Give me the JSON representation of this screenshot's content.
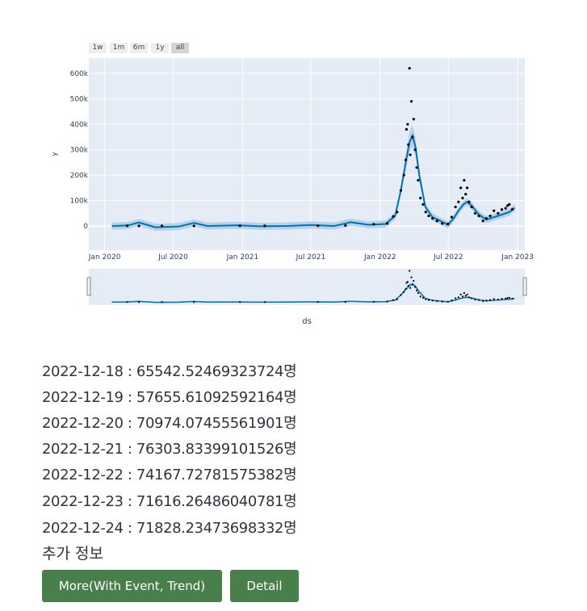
{
  "range_selector": {
    "buttons": [
      "1w",
      "1m",
      "6m",
      "1y",
      "all"
    ],
    "active": "all"
  },
  "colors": {
    "plot_bg": "#e5ecf6",
    "grid": "#ffffff",
    "forecast_line": "#0072b2",
    "uncertainty_band": "#a6c8e6",
    "observed_points": "#000000",
    "button_bg": "#487f4a"
  },
  "chart_data": {
    "type": "line",
    "xlabel": "ds",
    "ylabel": "y",
    "x_range": [
      "2019-11-20",
      "2023-01-20"
    ],
    "ylim": [
      -95000,
      660000
    ],
    "y_ticks": [
      0,
      100000,
      200000,
      300000,
      400000,
      500000,
      600000
    ],
    "y_tick_labels": [
      "0",
      "100k",
      "200k",
      "300k",
      "400k",
      "500k",
      "600k"
    ],
    "x_ticks": [
      "2020-01-01",
      "2020-07-01",
      "2021-01-01",
      "2021-07-01",
      "2022-01-01",
      "2022-07-01",
      "2023-01-01"
    ],
    "x_tick_labels": [
      "Jan 2020",
      "Jul 2020",
      "Jan 2021",
      "Jul 2021",
      "Jan 2022",
      "Jul 2022",
      "Jan 2023"
    ],
    "grid": true,
    "range_slider": true,
    "series": [
      {
        "role": "forecast",
        "x": [
          "2020-01-20",
          "2020-03-01",
          "2020-04-01",
          "2020-05-15",
          "2020-07-15",
          "2020-08-25",
          "2020-10-01",
          "2020-12-20",
          "2021-02-15",
          "2021-05-01",
          "2021-07-01",
          "2021-09-01",
          "2021-10-15",
          "2021-12-01",
          "2022-01-15",
          "2022-02-10",
          "2022-02-25",
          "2022-03-10",
          "2022-03-20",
          "2022-03-28",
          "2022-04-05",
          "2022-04-15",
          "2022-05-01",
          "2022-05-20",
          "2022-06-10",
          "2022-06-30",
          "2022-07-15",
          "2022-07-28",
          "2022-08-10",
          "2022-08-20",
          "2022-09-01",
          "2022-09-20",
          "2022-10-10",
          "2022-10-30",
          "2022-11-20",
          "2022-12-10",
          "2022-12-24"
        ],
        "y": [
          0,
          2000,
          14000,
          -5000,
          -2000,
          12000,
          0,
          3000,
          -1000,
          0,
          4000,
          0,
          15000,
          5000,
          8000,
          40000,
          140000,
          250000,
          330000,
          355000,
          310000,
          200000,
          75000,
          35000,
          20000,
          5000,
          30000,
          60000,
          85000,
          95000,
          80000,
          45000,
          25000,
          35000,
          45000,
          55000,
          72000
        ]
      },
      {
        "role": "observed",
        "x": [
          "2020-03-01",
          "2020-04-01",
          "2020-06-01",
          "2020-08-25",
          "2020-12-25",
          "2021-03-01",
          "2021-07-20",
          "2021-10-01",
          "2021-12-15",
          "2022-01-20",
          "2022-02-05",
          "2022-02-15",
          "2022-02-25",
          "2022-03-05",
          "2022-03-10",
          "2022-03-12",
          "2022-03-15",
          "2022-03-17",
          "2022-03-20",
          "2022-03-22",
          "2022-03-25",
          "2022-03-28",
          "2022-03-31",
          "2022-04-04",
          "2022-04-08",
          "2022-04-12",
          "2022-04-18",
          "2022-04-25",
          "2022-05-02",
          "2022-05-10",
          "2022-05-20",
          "2022-06-01",
          "2022-06-15",
          "2022-06-30",
          "2022-07-10",
          "2022-07-20",
          "2022-07-28",
          "2022-08-03",
          "2022-08-08",
          "2022-08-12",
          "2022-08-16",
          "2022-08-20",
          "2022-08-25",
          "2022-09-01",
          "2022-09-10",
          "2022-09-20",
          "2022-10-01",
          "2022-10-10",
          "2022-10-20",
          "2022-10-30",
          "2022-11-10",
          "2022-11-20",
          "2022-11-30",
          "2022-12-05",
          "2022-12-10",
          "2022-12-18"
        ],
        "y": [
          1000,
          500,
          800,
          400,
          1000,
          500,
          1500,
          2000,
          7000,
          10000,
          38000,
          55000,
          140000,
          200000,
          260000,
          380000,
          400000,
          320000,
          620000,
          280000,
          490000,
          350000,
          420000,
          300000,
          230000,
          180000,
          110000,
          85000,
          55000,
          40000,
          30000,
          20000,
          10000,
          8000,
          35000,
          75000,
          95000,
          150000,
          110000,
          180000,
          125000,
          150000,
          95000,
          75000,
          50000,
          40000,
          20000,
          30000,
          40000,
          60000,
          50000,
          65000,
          70000,
          80000,
          85000,
          65542
        ]
      }
    ]
  },
  "predictions": [
    {
      "date": "2022-12-18",
      "value": "65542.52469323724",
      "unit": "명"
    },
    {
      "date": "2022-12-19",
      "value": "57655.61092592164",
      "unit": "명"
    },
    {
      "date": "2022-12-20",
      "value": "70974.07455561901",
      "unit": "명"
    },
    {
      "date": "2022-12-21",
      "value": "76303.83399101526",
      "unit": "명"
    },
    {
      "date": "2022-12-22",
      "value": "74167.72781575382",
      "unit": "명"
    },
    {
      "date": "2022-12-23",
      "value": "71616.26486040781",
      "unit": "명"
    },
    {
      "date": "2022-12-24",
      "value": "71828.23473698332",
      "unit": "명"
    }
  ],
  "extra_info_label": "추가 정보",
  "buttons": {
    "more_label": "More(With Event, Trend)",
    "detail_label": "Detail"
  }
}
